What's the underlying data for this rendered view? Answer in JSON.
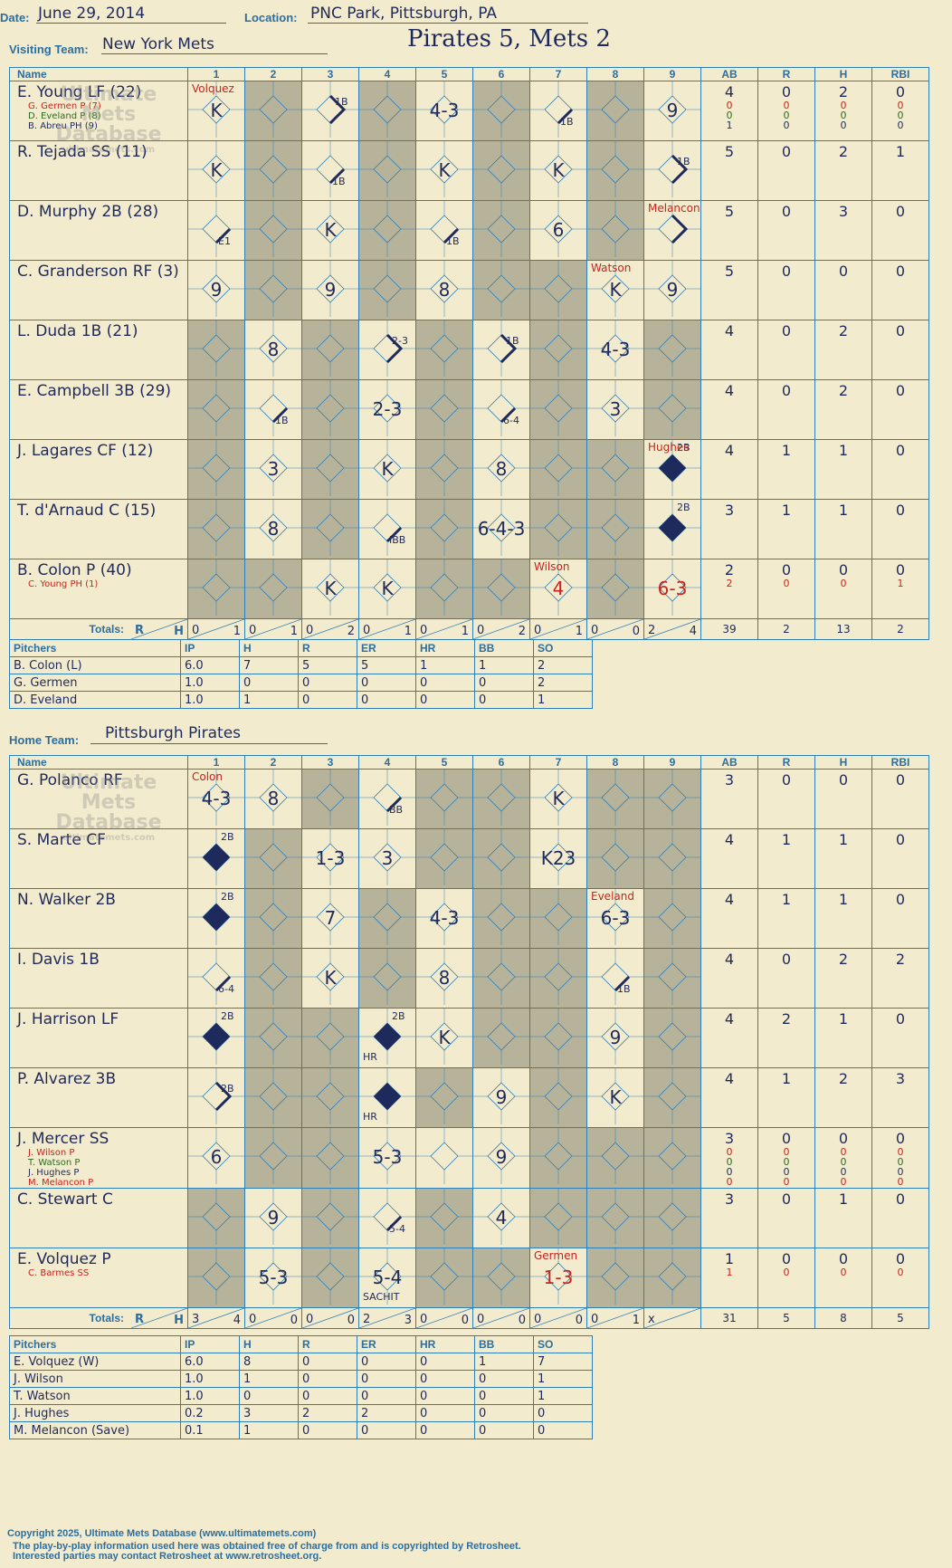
{
  "header": {
    "date_label": "Date:",
    "date": "June 29, 2014",
    "location_label": "Location:",
    "location": "PNC Park, Pittsburgh, PA",
    "visiting_label": "Visiting Team:",
    "visiting_team": "New York Mets",
    "home_label": "Home Team:",
    "home_team": "Pittsburgh Pirates",
    "result": "Pirates 5, Mets 2"
  },
  "watermark": {
    "line1": "Ultimate",
    "line2": "Mets",
    "line3": "Database",
    "url": "ultimatemets.com"
  },
  "columns": {
    "name": "Name",
    "innings": [
      "1",
      "2",
      "3",
      "4",
      "5",
      "6",
      "7",
      "8",
      "9"
    ],
    "stats": [
      "AB",
      "R",
      "H",
      "RBI"
    ]
  },
  "totals_label": "Totals:",
  "rh_labels": {
    "r": "R",
    "h": "H"
  },
  "visitors": {
    "batters": [
      {
        "name": "E. Young LF (22)",
        "subs": [
          {
            "text": "G. Germen P (7)",
            "color": "red"
          },
          {
            "text": "D. Eveland P (8)",
            "color": "green"
          },
          {
            "text": "B. Abreu PH (9)",
            "color": "navy"
          }
        ],
        "stats": [
          "4",
          "0",
          "2",
          "0"
        ],
        "sub_stats": [
          [
            "0",
            "0",
            "0",
            "0"
          ],
          [
            "0",
            "0",
            "0",
            "0"
          ],
          [
            "1",
            "0",
            "0",
            "0"
          ]
        ]
      },
      {
        "name": "R. Tejada SS (11)",
        "subs": [],
        "stats": [
          "5",
          "0",
          "2",
          "1"
        ],
        "sub_stats": []
      },
      {
        "name": "D. Murphy 2B (28)",
        "subs": [],
        "stats": [
          "5",
          "0",
          "3",
          "0"
        ],
        "sub_stats": []
      },
      {
        "name": "C. Granderson RF (3)",
        "subs": [],
        "stats": [
          "5",
          "0",
          "0",
          "0"
        ],
        "sub_stats": []
      },
      {
        "name": "L. Duda 1B (21)",
        "subs": [],
        "stats": [
          "4",
          "0",
          "2",
          "0"
        ],
        "sub_stats": []
      },
      {
        "name": "E. Campbell 3B (29)",
        "subs": [],
        "stats": [
          "4",
          "0",
          "2",
          "0"
        ],
        "sub_stats": []
      },
      {
        "name": "J. Lagares CF (12)",
        "subs": [],
        "stats": [
          "4",
          "1",
          "1",
          "0"
        ],
        "sub_stats": []
      },
      {
        "name": "T. d'Arnaud C (15)",
        "subs": [],
        "stats": [
          "3",
          "1",
          "1",
          "0"
        ],
        "sub_stats": []
      },
      {
        "name": "B. Colon P (40)",
        "subs": [
          {
            "text": "C. Young PH (1)",
            "color": "red"
          }
        ],
        "stats": [
          "2",
          "0",
          "0",
          "0"
        ],
        "sub_stats": [
          [
            "2",
            "0",
            "0",
            "1"
          ]
        ]
      }
    ],
    "plays": [
      [
        {
          "i": 1,
          "t": "K",
          "note": "Volquez"
        },
        {
          "i": 3,
          "t": "",
          "hit": "2B",
          "lbl": "1B"
        },
        {
          "i": 5,
          "t": "4-3"
        },
        {
          "i": 7,
          "t": "",
          "hit": "1B",
          "lbl": "1B"
        },
        {
          "i": 9,
          "t": "9"
        }
      ],
      [
        {
          "i": 1,
          "t": "K"
        },
        {
          "i": 3,
          "t": "",
          "hit": "1B",
          "lbl": "1B"
        },
        {
          "i": 5,
          "t": "K"
        },
        {
          "i": 7,
          "t": "K"
        },
        {
          "i": 9,
          "t": "",
          "hit": "2B",
          "lbl": "1B"
        }
      ],
      [
        {
          "i": 1,
          "t": "",
          "hit": "1B",
          "lbl": "E1"
        },
        {
          "i": 3,
          "t": "K"
        },
        {
          "i": 5,
          "t": "",
          "hit": "1B",
          "lbl": "1B"
        },
        {
          "i": 7,
          "t": "6"
        },
        {
          "i": 9,
          "t": "",
          "hit": "2B",
          "lbl": "",
          "note": "Melancon"
        }
      ],
      [
        {
          "i": 1,
          "t": "9"
        },
        {
          "i": 3,
          "t": "9"
        },
        {
          "i": 5,
          "t": "8"
        },
        {
          "i": 8,
          "t": "K",
          "note": "Watson"
        },
        {
          "i": 9,
          "t": "9"
        }
      ],
      [
        {
          "i": 2,
          "t": "8"
        },
        {
          "i": 4,
          "t": "",
          "hit": "2B",
          "lbl": "2-3"
        },
        {
          "i": 6,
          "t": "",
          "hit": "2B",
          "lbl": "1B"
        },
        {
          "i": 8,
          "t": "4-3"
        }
      ],
      [
        {
          "i": 2,
          "t": "",
          "hit": "1B",
          "lbl": "1B"
        },
        {
          "i": 4,
          "t": "2-3"
        },
        {
          "i": 6,
          "t": "",
          "hit": "1B",
          "lbl": "6-4"
        },
        {
          "i": 8,
          "t": "3"
        }
      ],
      [
        {
          "i": 2,
          "t": "3"
        },
        {
          "i": 4,
          "t": "K"
        },
        {
          "i": 6,
          "t": "8"
        },
        {
          "i": 9,
          "t": "",
          "run": true,
          "lbl": "2B",
          "note": "Hughes"
        }
      ],
      [
        {
          "i": 2,
          "t": "8"
        },
        {
          "i": 4,
          "t": "",
          "hit": "1B",
          "lbl": "IBB"
        },
        {
          "i": 6,
          "t": "6-4-3"
        },
        {
          "i": 9,
          "t": "",
          "run": true,
          "lbl": "2B"
        }
      ],
      [
        {
          "i": 3,
          "t": "K"
        },
        {
          "i": 4,
          "t": "K"
        },
        {
          "i": 7,
          "t": "4",
          "red": true,
          "note": "Wilson"
        },
        {
          "i": 9,
          "t": "6-3",
          "red": true
        }
      ]
    ],
    "shaded": [
      [
        2,
        4,
        6,
        8
      ],
      [
        2,
        4,
        6,
        8
      ],
      [
        2,
        4,
        6,
        8
      ],
      [
        2,
        4,
        6,
        7
      ],
      [
        1,
        3,
        5,
        7,
        9
      ],
      [
        1,
        3,
        5,
        7,
        9
      ],
      [
        1,
        3,
        5,
        7,
        8
      ],
      [
        1,
        3,
        5,
        7,
        8
      ],
      [
        1,
        2,
        5,
        6,
        8
      ]
    ],
    "totals": {
      "innings": [
        [
          "0",
          "1"
        ],
        [
          "0",
          "1"
        ],
        [
          "0",
          "2"
        ],
        [
          "0",
          "1"
        ],
        [
          "0",
          "1"
        ],
        [
          "0",
          "2"
        ],
        [
          "0",
          "1"
        ],
        [
          "0",
          "0"
        ],
        [
          "2",
          "4"
        ]
      ],
      "stats": [
        "39",
        "2",
        "13",
        "2"
      ]
    },
    "pitchers": [
      {
        "name": "B. Colon (L)",
        "vals": [
          "6.0",
          "7",
          "5",
          "5",
          "1",
          "1",
          "2"
        ]
      },
      {
        "name": "G. Germen",
        "vals": [
          "1.0",
          "0",
          "0",
          "0",
          "0",
          "0",
          "2"
        ]
      },
      {
        "name": "D. Eveland",
        "vals": [
          "1.0",
          "1",
          "0",
          "0",
          "0",
          "0",
          "1"
        ]
      }
    ]
  },
  "home": {
    "batters": [
      {
        "name": "G. Polanco RF",
        "subs": [],
        "stats": [
          "3",
          "0",
          "0",
          "0"
        ],
        "sub_stats": []
      },
      {
        "name": "S. Marte CF",
        "subs": [],
        "stats": [
          "4",
          "1",
          "1",
          "0"
        ],
        "sub_stats": []
      },
      {
        "name": "N. Walker 2B",
        "subs": [],
        "stats": [
          "4",
          "1",
          "1",
          "0"
        ],
        "sub_stats": []
      },
      {
        "name": "I. Davis 1B",
        "subs": [],
        "stats": [
          "4",
          "0",
          "2",
          "2"
        ],
        "sub_stats": []
      },
      {
        "name": "J. Harrison LF",
        "subs": [],
        "stats": [
          "4",
          "2",
          "1",
          "0"
        ],
        "sub_stats": []
      },
      {
        "name": "P. Alvarez 3B",
        "subs": [],
        "stats": [
          "4",
          "1",
          "2",
          "3"
        ],
        "sub_stats": []
      },
      {
        "name": "J. Mercer SS",
        "subs": [
          {
            "text": "J. Wilson P",
            "color": "red"
          },
          {
            "text": "T. Watson P",
            "color": "green"
          },
          {
            "text": "J. Hughes P",
            "color": "navy"
          },
          {
            "text": "M. Melancon P",
            "color": "red"
          }
        ],
        "stats": [
          "3",
          "0",
          "0",
          "0"
        ],
        "sub_stats": [
          [
            "0",
            "0",
            "0",
            "0"
          ],
          [
            "0",
            "0",
            "0",
            "0"
          ],
          [
            "0",
            "0",
            "0",
            "0"
          ],
          [
            "0",
            "0",
            "0",
            "0"
          ]
        ]
      },
      {
        "name": "C. Stewart C",
        "subs": [],
        "stats": [
          "3",
          "0",
          "1",
          "0"
        ],
        "sub_stats": []
      },
      {
        "name": "E. Volquez P",
        "subs": [
          {
            "text": "C. Barmes SS",
            "color": "red"
          }
        ],
        "stats": [
          "1",
          "0",
          "0",
          "0"
        ],
        "sub_stats": [
          [
            "1",
            "0",
            "0",
            "0"
          ]
        ]
      }
    ],
    "plays": [
      [
        {
          "i": 1,
          "t": "4-3",
          "note": "Colon"
        },
        {
          "i": 2,
          "t": "8"
        },
        {
          "i": 4,
          "t": "",
          "hit": "1B",
          "lbl": "BB"
        },
        {
          "i": 7,
          "t": "K"
        }
      ],
      [
        {
          "i": 1,
          "t": "",
          "run": true,
          "lbl": "2B"
        },
        {
          "i": 3,
          "t": "1-3"
        },
        {
          "i": 4,
          "t": "3"
        },
        {
          "i": 7,
          "t": "K23"
        }
      ],
      [
        {
          "i": 1,
          "t": "",
          "run": true,
          "lbl": "2B"
        },
        {
          "i": 3,
          "t": "7"
        },
        {
          "i": 5,
          "t": "4-3"
        },
        {
          "i": 8,
          "t": "6-3",
          "note": "Eveland"
        }
      ],
      [
        {
          "i": 1,
          "t": "",
          "hit": "1B",
          "lbl": "6-4"
        },
        {
          "i": 3,
          "t": "K"
        },
        {
          "i": 5,
          "t": "8"
        },
        {
          "i": 8,
          "t": "",
          "hit": "1B",
          "lbl": "1B"
        }
      ],
      [
        {
          "i": 1,
          "t": "",
          "run": true,
          "lbl": "2B"
        },
        {
          "i": 4,
          "t": "",
          "run": true,
          "lbl": "2B",
          "bottom": "HR"
        },
        {
          "i": 5,
          "t": "K"
        },
        {
          "i": 8,
          "t": "9"
        }
      ],
      [
        {
          "i": 1,
          "t": "",
          "hit": "2B",
          "lbl": "2B"
        },
        {
          "i": 4,
          "t": "",
          "run": true,
          "lbl": "",
          "bottom": "HR"
        },
        {
          "i": 6,
          "t": "9"
        },
        {
          "i": 8,
          "t": "K"
        }
      ],
      [
        {
          "i": 1,
          "t": "6"
        },
        {
          "i": 4,
          "t": "5-3"
        },
        {
          "i": 6,
          "t": "9"
        }
      ],
      [
        {
          "i": 2,
          "t": "9"
        },
        {
          "i": 4,
          "t": "",
          "hit": "1B",
          "lbl": "5-4"
        },
        {
          "i": 6,
          "t": "4"
        }
      ],
      [
        {
          "i": 2,
          "t": "5-3"
        },
        {
          "i": 4,
          "t": "5-4",
          "bottom": "SACHIT"
        },
        {
          "i": 7,
          "t": "1-3",
          "red": true,
          "note": "Germen"
        }
      ]
    ],
    "shaded": [
      [
        3,
        5,
        6,
        8,
        9
      ],
      [
        2,
        5,
        6,
        8,
        9
      ],
      [
        2,
        4,
        6,
        7,
        9
      ],
      [
        2,
        4,
        6,
        7,
        9
      ],
      [
        2,
        3,
        6,
        7,
        9
      ],
      [
        2,
        3,
        5,
        7,
        9
      ],
      [
        2,
        3,
        7,
        8,
        9
      ],
      [
        1,
        3,
        5,
        7,
        8,
        9
      ],
      [
        1,
        3,
        5,
        6,
        8,
        9
      ]
    ],
    "totals": {
      "innings": [
        [
          "3",
          "4"
        ],
        [
          "0",
          "0"
        ],
        [
          "0",
          "0"
        ],
        [
          "2",
          "3"
        ],
        [
          "0",
          "0"
        ],
        [
          "0",
          "0"
        ],
        [
          "0",
          "0"
        ],
        [
          "0",
          "1"
        ],
        [
          "x",
          ""
        ]
      ],
      "stats": [
        "31",
        "5",
        "8",
        "5"
      ]
    },
    "pitchers": [
      {
        "name": "E. Volquez (W)",
        "vals": [
          "6.0",
          "8",
          "0",
          "0",
          "0",
          "1",
          "7"
        ]
      },
      {
        "name": "J. Wilson",
        "vals": [
          "1.0",
          "1",
          "0",
          "0",
          "0",
          "0",
          "1"
        ]
      },
      {
        "name": "T. Watson",
        "vals": [
          "1.0",
          "0",
          "0",
          "0",
          "0",
          "0",
          "1"
        ]
      },
      {
        "name": "J. Hughes",
        "vals": [
          "0.2",
          "3",
          "2",
          "2",
          "0",
          "0",
          "0"
        ]
      },
      {
        "name": "M. Melancon (Save)",
        "vals": [
          "0.1",
          "1",
          "0",
          "0",
          "0",
          "0",
          "0"
        ]
      }
    ]
  },
  "pitcher_headers": [
    "Pitchers",
    "IP",
    "H",
    "R",
    "ER",
    "HR",
    "BB",
    "SO"
  ],
  "footer": {
    "line1": "Copyright 2025, Ultimate Mets Database (www.ultimatemets.com)",
    "line2": "The play-by-play information used here was obtained free of charge from and is copyrighted by Retrosheet.",
    "line3": "Interested parties may contact Retrosheet at www.retrosheet.org."
  },
  "colors": {
    "ink": "#1f2a5c",
    "grid": "#2f7fb7",
    "label": "#2c6e9f",
    "shade": "#b7b39a",
    "paper": "#f3ebcd",
    "note": "#c8231f"
  }
}
